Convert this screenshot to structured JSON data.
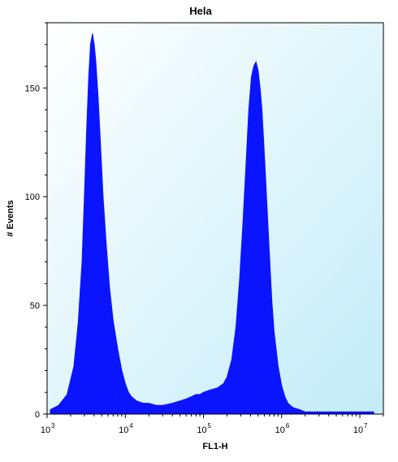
{
  "chart_data": {
    "type": "area",
    "title": "Hela",
    "xlabel": "FL1-H",
    "ylabel": "# Events",
    "x_scale": "log",
    "xlim": [
      1000,
      20000000
    ],
    "ylim": [
      0,
      180
    ],
    "x_ticks": [
      {
        "value": 1000,
        "base": "10",
        "exp": "3"
      },
      {
        "value": 10000,
        "base": "10",
        "exp": "4"
      },
      {
        "value": 100000,
        "base": "10",
        "exp": "5"
      },
      {
        "value": 1000000,
        "base": "10",
        "exp": "6"
      },
      {
        "value": 10000000,
        "base": "10",
        "exp": "7"
      }
    ],
    "y_ticks": [
      0,
      50,
      100,
      150
    ],
    "grid": false,
    "colors": {
      "fill": "#0a14ff",
      "plot_bg_start": "#ffffff",
      "plot_bg_end": "#c2ecf8"
    },
    "series": [
      {
        "x": [
          1100,
          1400,
          1800,
          2200,
          2500,
          2800,
          3000,
          3200,
          3400,
          3600,
          3800,
          4000,
          4200,
          4500,
          4800,
          5200,
          5700,
          6300,
          7000,
          8000,
          9000,
          10000,
          11000,
          12000,
          14000,
          17000,
          20000,
          25000,
          30000,
          40000,
          50000,
          60000,
          70000,
          80000,
          90000,
          100000,
          120000,
          150000,
          180000,
          200000,
          230000,
          260000,
          290000,
          320000,
          350000,
          380000,
          410000,
          440000,
          470000,
          500000,
          530000,
          560000,
          600000,
          650000,
          700000,
          750000,
          800000,
          900000,
          1000000,
          1100000,
          1200000,
          1400000,
          1700000,
          2000000,
          3000000,
          5000000,
          10000000,
          15000000
        ],
        "values": [
          2,
          4,
          9,
          22,
          42,
          70,
          100,
          130,
          155,
          170,
          175,
          170,
          162,
          145,
          125,
          100,
          78,
          58,
          43,
          30,
          20,
          14,
          10,
          8,
          6,
          5,
          5,
          4,
          4,
          5,
          6,
          7,
          8,
          9,
          9,
          10,
          11,
          12,
          14,
          17,
          25,
          40,
          62,
          88,
          115,
          140,
          155,
          160,
          162,
          158,
          150,
          140,
          120,
          95,
          72,
          52,
          38,
          22,
          13,
          8,
          5,
          3,
          2,
          1,
          1,
          1,
          1,
          1
        ]
      }
    ]
  }
}
